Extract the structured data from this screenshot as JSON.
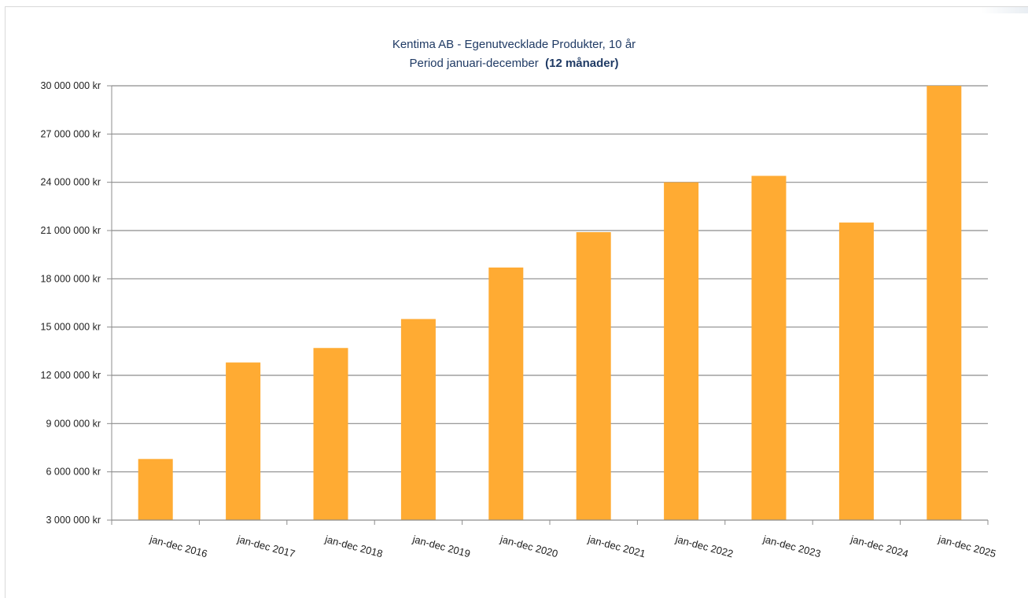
{
  "chart_data": {
    "type": "bar",
    "title_line1": "Kentima AB - Egenutvecklade Produkter, 10 år",
    "title_line2_prefix": "Period januari-december",
    "title_line2_bold": "(12 månader)",
    "categories": [
      "jan-dec 2016",
      "jan-dec 2017",
      "jan-dec 2018",
      "jan-dec 2019",
      "jan-dec 2020",
      "jan-dec 2021",
      "jan-dec 2022",
      "jan-dec 2023",
      "jan-dec 2024",
      "jan-dec 2025"
    ],
    "values": [
      6800000,
      12800000,
      13700000,
      15500000,
      18700000,
      20900000,
      24000000,
      24400000,
      21500000,
      30000000
    ],
    "ylim": [
      3000000,
      30000000
    ],
    "yticks": [
      3000000,
      6000000,
      9000000,
      12000000,
      15000000,
      18000000,
      21000000,
      24000000,
      27000000,
      30000000
    ],
    "ytick_labels": [
      "3 000 000 kr",
      "6 000 000 kr",
      "9 000 000 kr",
      "12 000 000 kr",
      "15 000 000 kr",
      "18 000 000 kr",
      "21 000 000 kr",
      "24 000 000 kr",
      "27 000 000 kr",
      "30 000 000 kr"
    ],
    "bar_color": "#ffab33",
    "grid": true,
    "legend": "none",
    "xlabel": "",
    "ylabel": ""
  }
}
